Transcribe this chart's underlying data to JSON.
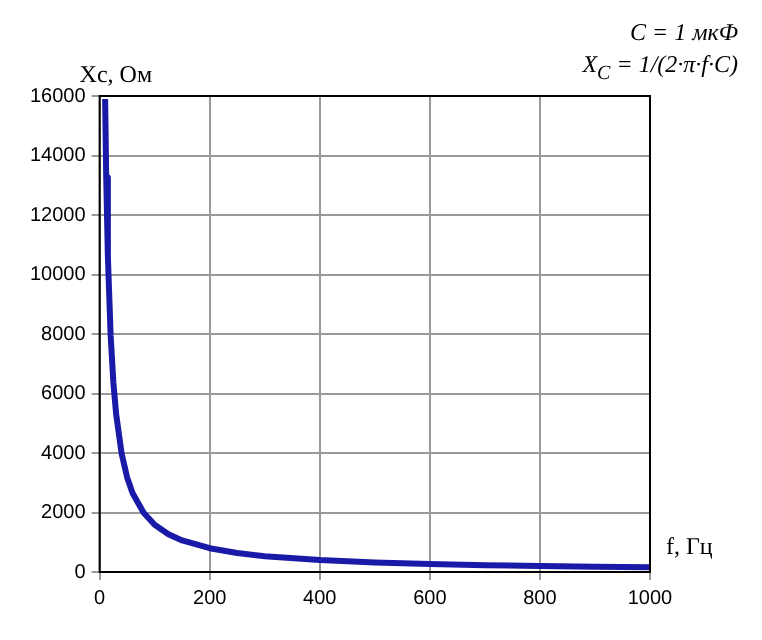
{
  "chart_data": {
    "type": "line",
    "xlabel": "f, Гц",
    "ylabel": "Xc, Ом",
    "annotations": [
      "C = 1 мкФ",
      "X$_{C}$ = 1/(2·π·f·C)"
    ],
    "x": [
      10,
      12,
      15,
      20,
      25,
      30,
      40,
      50,
      60,
      80,
      100,
      125,
      150,
      200,
      250,
      300,
      400,
      500,
      600,
      700,
      800,
      900,
      1000
    ],
    "series": [
      {
        "color": "#1a1aa8",
        "values": [
          15900,
          13260,
          10610,
          7960,
          6370,
          5310,
          3980,
          3180,
          2650,
          1990,
          1590,
          1270,
          1060,
          800,
          640,
          530,
          400,
          320,
          270,
          230,
          200,
          180,
          160
        ]
      }
    ],
    "xlim": [
      0,
      1000
    ],
    "xticks": [
      0,
      200,
      400,
      600,
      800,
      1000
    ],
    "ylim": [
      0,
      16000
    ],
    "yticks": [
      0,
      2000,
      4000,
      6000,
      8000,
      10000,
      12000,
      14000,
      16000
    ],
    "grid": true,
    "line_style": "solid",
    "marker": "none",
    "legend": false
  }
}
